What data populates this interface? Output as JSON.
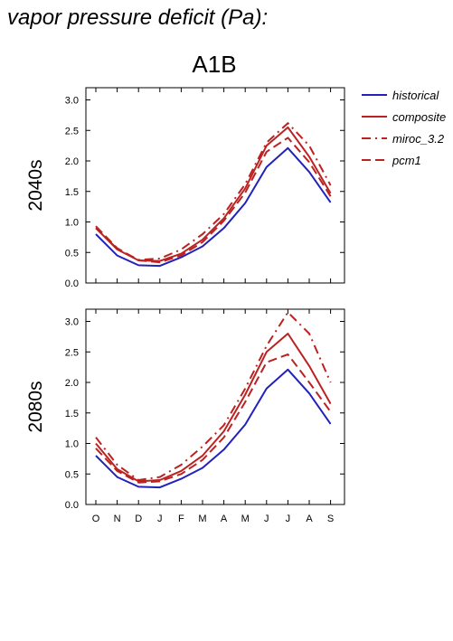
{
  "page_title": "vapor pressure deficit (Pa):",
  "scenario_title": "A1B",
  "colors": {
    "historical": "#2222bb",
    "projection": "#bb2222"
  },
  "legend": [
    {
      "label": "historical",
      "style": "solid",
      "color": "#2222bb"
    },
    {
      "label": "composite",
      "style": "solid",
      "color": "#bb2222"
    },
    {
      "label": "miroc_3.2",
      "style": "dashdot",
      "color": "#bb2222"
    },
    {
      "label": "pcm1",
      "style": "dashed",
      "color": "#bb2222"
    }
  ],
  "chart_data": [
    {
      "type": "line",
      "row_label": "2040s",
      "title": "A1B",
      "categories": [
        "O",
        "N",
        "D",
        "J",
        "F",
        "M",
        "A",
        "M",
        "J",
        "J",
        "A",
        "S"
      ],
      "ylim": [
        0,
        3.2
      ],
      "yticks": [
        "0.0",
        "0.5",
        "1.0",
        "1.5",
        "2.0",
        "2.5",
        "3.0"
      ],
      "series": [
        {
          "name": "historical",
          "style": "solid",
          "color": "#2222bb",
          "values": [
            0.8,
            0.45,
            0.29,
            0.28,
            0.42,
            0.6,
            0.9,
            1.31,
            1.9,
            2.21,
            1.82,
            1.32
          ]
        },
        {
          "name": "composite",
          "style": "solid",
          "color": "#bb2222",
          "values": [
            0.9,
            0.55,
            0.37,
            0.36,
            0.48,
            0.71,
            1.06,
            1.55,
            2.25,
            2.55,
            2.07,
            1.47
          ]
        },
        {
          "name": "miroc_3.2",
          "style": "dashdot",
          "color": "#bb2222",
          "values": [
            0.9,
            0.56,
            0.38,
            0.4,
            0.55,
            0.8,
            1.13,
            1.62,
            2.3,
            2.62,
            2.25,
            1.6
          ]
        },
        {
          "name": "pcm1",
          "style": "dashed",
          "color": "#bb2222",
          "values": [
            0.93,
            0.57,
            0.37,
            0.34,
            0.45,
            0.67,
            1.02,
            1.48,
            2.15,
            2.38,
            1.98,
            1.42
          ]
        }
      ]
    },
    {
      "type": "line",
      "row_label": "2080s",
      "title": "",
      "categories": [
        "O",
        "N",
        "D",
        "J",
        "F",
        "M",
        "A",
        "M",
        "J",
        "J",
        "A",
        "S"
      ],
      "ylim": [
        0,
        3.2
      ],
      "yticks": [
        "0.0",
        "0.5",
        "1.0",
        "1.5",
        "2.0",
        "2.5",
        "3.0"
      ],
      "series": [
        {
          "name": "historical",
          "style": "solid",
          "color": "#2222bb",
          "values": [
            0.8,
            0.45,
            0.29,
            0.28,
            0.42,
            0.6,
            0.9,
            1.31,
            1.9,
            2.21,
            1.82,
            1.32
          ]
        },
        {
          "name": "composite",
          "style": "solid",
          "color": "#bb2222",
          "values": [
            1.0,
            0.58,
            0.38,
            0.4,
            0.55,
            0.8,
            1.2,
            1.8,
            2.5,
            2.8,
            2.27,
            1.65
          ]
        },
        {
          "name": "miroc_3.2",
          "style": "dashdot",
          "color": "#bb2222",
          "values": [
            1.1,
            0.65,
            0.4,
            0.45,
            0.65,
            0.95,
            1.3,
            1.9,
            2.6,
            3.15,
            2.8,
            2.0
          ]
        },
        {
          "name": "pcm1",
          "style": "dashed",
          "color": "#bb2222",
          "values": [
            0.92,
            0.55,
            0.36,
            0.38,
            0.5,
            0.73,
            1.1,
            1.68,
            2.33,
            2.46,
            2.0,
            1.52
          ]
        }
      ]
    }
  ]
}
